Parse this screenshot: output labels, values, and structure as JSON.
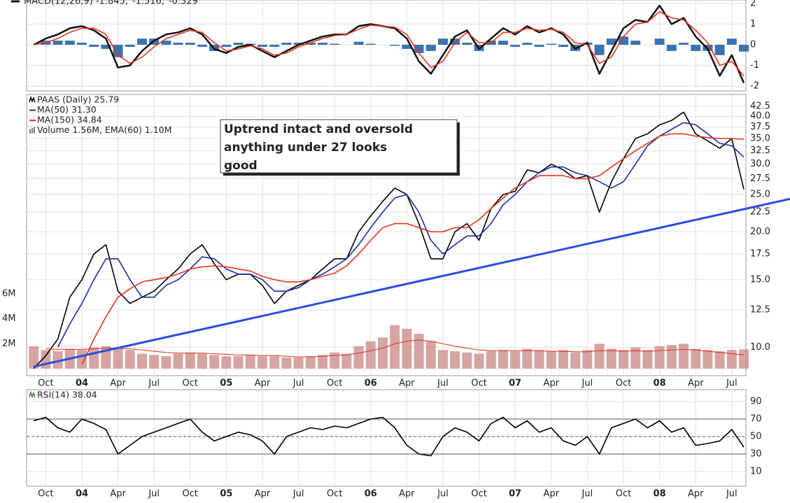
{
  "time_axis": {
    "x": [
      "2003-09",
      "2003-10",
      "2003-11",
      "2003-12",
      "2004-01",
      "2004-02",
      "2004-03",
      "2004-04",
      "2004-05",
      "2004-06",
      "2004-07",
      "2004-08",
      "2004-09",
      "2004-10",
      "2004-11",
      "2004-12",
      "2005-01",
      "2005-02",
      "2005-03",
      "2005-04",
      "2005-05",
      "2005-06",
      "2005-07",
      "2005-08",
      "2005-09",
      "2005-10",
      "2005-11",
      "2005-12",
      "2006-01",
      "2006-02",
      "2006-03",
      "2006-04",
      "2006-05",
      "2006-06",
      "2006-07",
      "2006-08",
      "2006-09",
      "2006-10",
      "2006-11",
      "2006-12",
      "2007-01",
      "2007-02",
      "2007-03",
      "2007-04",
      "2007-05",
      "2007-06",
      "2007-07",
      "2007-08",
      "2007-09",
      "2007-10",
      "2007-11",
      "2007-12",
      "2008-01",
      "2008-02",
      "2008-03",
      "2008-04",
      "2008-05",
      "2008-06",
      "2008-07",
      "2008-08"
    ],
    "xlim": [
      "2003-08",
      "2008-08"
    ],
    "xticks": [
      {
        "value": "2003-10",
        "label": "Oct"
      },
      {
        "value": "2004-01",
        "label": "04"
      },
      {
        "value": "2004-04",
        "label": "Apr"
      },
      {
        "value": "2004-07",
        "label": "Jul"
      },
      {
        "value": "2004-10",
        "label": "Oct"
      },
      {
        "value": "2005-01",
        "label": "05"
      },
      {
        "value": "2005-04",
        "label": "Apr"
      },
      {
        "value": "2005-07",
        "label": "Jul"
      },
      {
        "value": "2005-10",
        "label": "Oct"
      },
      {
        "value": "2006-01",
        "label": "06"
      },
      {
        "value": "2006-04",
        "label": "Apr"
      },
      {
        "value": "2006-07",
        "label": "Jul"
      },
      {
        "value": "2006-10",
        "label": "Oct"
      },
      {
        "value": "2007-01",
        "label": "07"
      },
      {
        "value": "2007-04",
        "label": "Apr"
      },
      {
        "value": "2007-07",
        "label": "Jul"
      },
      {
        "value": "2007-10",
        "label": "Oct"
      },
      {
        "value": "2008-01",
        "label": "08"
      },
      {
        "value": "2008-04",
        "label": "Apr"
      },
      {
        "value": "2008-07",
        "label": "Jul"
      }
    ]
  },
  "chart_data": [
    {
      "type": "line",
      "grid": true,
      "ylim": [
        -2.2,
        2.2
      ],
      "yticks": [
        -2,
        -1,
        0,
        1,
        2
      ],
      "series": [
        {
          "name": "MACD(12,26,9) -1.845,",
          "color": "#111111",
          "style": "line",
          "values": [
            0,
            0.3,
            0.5,
            0.8,
            0.9,
            0.7,
            0.3,
            -1.1,
            -1,
            -0.3,
            0.2,
            0.5,
            0.6,
            0.8,
            0.5,
            -0.2,
            -0.4,
            -0.1,
            0,
            -0.3,
            -0.6,
            -0.3,
            0,
            0.2,
            0.4,
            0.5,
            0.5,
            0.9,
            1.0,
            0.9,
            0.8,
            0.3,
            -0.8,
            -1.4,
            -0.5,
            0.4,
            0.7,
            -0.2,
            0.3,
            0.8,
            0.5,
            0.9,
            0.6,
            0.8,
            0.5,
            -0.2,
            0.1,
            -1.4,
            -0.3,
            0.8,
            1.2,
            1.1,
            1.9,
            1.0,
            1.3,
            0.4,
            -0.2,
            -1.5,
            -0.5,
            -1.845
          ]
        },
        {
          "name": "-1.516,",
          "color": "#e8341c",
          "style": "line",
          "values": [
            0,
            0.1,
            0.3,
            0.6,
            0.8,
            0.8,
            0.5,
            -0.5,
            -0.9,
            -0.6,
            -0.1,
            0.3,
            0.5,
            0.7,
            0.6,
            0.1,
            -0.3,
            -0.2,
            -0.05,
            -0.2,
            -0.5,
            -0.4,
            -0.1,
            0.1,
            0.3,
            0.45,
            0.5,
            0.75,
            0.95,
            0.9,
            0.85,
            0.5,
            -0.4,
            -1.1,
            -0.8,
            0.1,
            0.6,
            0.1,
            0.1,
            0.6,
            0.6,
            0.8,
            0.7,
            0.75,
            0.6,
            0.1,
            0,
            -0.9,
            -0.6,
            0.4,
            1.0,
            1.1,
            1.6,
            1.3,
            1.2,
            0.7,
            0.1,
            -1.0,
            -0.8,
            -1.516
          ]
        },
        {
          "name": "-0.329",
          "color": "#3b73b0",
          "style": "bar",
          "values": [
            0,
            0.2,
            0.2,
            0.2,
            0.1,
            -0.1,
            -0.2,
            -0.6,
            -0.1,
            0.3,
            0.3,
            0.2,
            0.1,
            0.1,
            -0.1,
            -0.3,
            -0.1,
            0.1,
            0.05,
            -0.1,
            -0.1,
            0.1,
            0.1,
            0.1,
            0.1,
            0.05,
            0,
            0.15,
            0.05,
            0,
            -0.05,
            -0.2,
            -0.4,
            -0.3,
            0.3,
            0.3,
            0.1,
            -0.3,
            0.2,
            0.2,
            -0.1,
            0.1,
            -0.1,
            0.05,
            -0.1,
            -0.3,
            0.1,
            -0.5,
            0.3,
            0.4,
            0.2,
            0,
            0.3,
            -0.3,
            0.1,
            -0.3,
            -0.3,
            -0.5,
            0.3,
            -0.329
          ]
        }
      ]
    },
    {
      "type": "line",
      "grid": true,
      "log_scale": true,
      "ylim": [
        8.5,
        45.6
      ],
      "yticks": [
        {
          "value": 10,
          "label": "10.0"
        },
        12.5,
        {
          "value": 15,
          "label": "15.0"
        },
        17.5,
        {
          "value": 20,
          "label": "20.0"
        },
        22.5,
        {
          "value": 25,
          "label": "25.0"
        },
        27.5,
        {
          "value": 30,
          "label": "30.0"
        },
        32.5,
        {
          "value": 35,
          "label": "35.0"
        },
        37.5,
        {
          "value": 40,
          "label": "40.0"
        },
        42.5
      ],
      "y2lim": [
        0,
        22000000
      ],
      "y2ticks": [
        {
          "value": 2000000,
          "label": "2M"
        },
        {
          "value": 4000000,
          "label": "4M"
        },
        {
          "value": 6000000,
          "label": "6M"
        }
      ],
      "series": [
        {
          "name": "PAAS (Daily) 25.79",
          "color": "#000000",
          "style": "line",
          "values": [
            8.8,
            9.5,
            10.5,
            13.5,
            15,
            17.5,
            18.5,
            14,
            13,
            13.5,
            14,
            15,
            16,
            17.5,
            18.5,
            16.5,
            15,
            15.5,
            15.5,
            14.5,
            13,
            14,
            14.5,
            15,
            16,
            17,
            17,
            20,
            22,
            24,
            26,
            25,
            21,
            17,
            17,
            20,
            21,
            19,
            23,
            25,
            25.5,
            29,
            28.5,
            30,
            29,
            27.5,
            28,
            22.5,
            27,
            31,
            35,
            36,
            38,
            39,
            41,
            36,
            34.5,
            33,
            35,
            25.79
          ]
        },
        {
          "name": "MA(50) 31.30",
          "color": "#1a2ea8",
          "style": "line",
          "values": [
            null,
            null,
            10,
            11.5,
            13,
            15,
            17,
            17,
            15,
            13.5,
            13.5,
            14.5,
            15,
            16,
            17.2,
            17,
            16,
            15.5,
            15.5,
            15,
            14,
            14,
            14.3,
            15,
            15.5,
            16.2,
            17,
            18.5,
            20.5,
            22.5,
            24.5,
            25,
            22.5,
            19,
            17.5,
            18.5,
            19.5,
            19.5,
            21,
            23.5,
            25,
            27,
            28.5,
            29.5,
            29.5,
            28.5,
            28,
            27,
            26,
            27,
            30,
            33.5,
            35.5,
            37,
            38.5,
            38,
            36,
            34,
            33.5,
            31.3
          ]
        },
        {
          "name": "MA(150) 34.84",
          "color": "#e8341c",
          "style": "line",
          "values": [
            null,
            null,
            null,
            null,
            9,
            10.5,
            12,
            13.5,
            14.2,
            14.8,
            15,
            15.2,
            15.5,
            16,
            16.2,
            16.3,
            16.2,
            16,
            15.8,
            15.3,
            15,
            14.8,
            14.8,
            15,
            15.3,
            15.6,
            16.3,
            17.5,
            19,
            20.5,
            21,
            21,
            20.5,
            20,
            20,
            20.5,
            20.5,
            21.5,
            23,
            24.5,
            26,
            27,
            28,
            28,
            28,
            27.5,
            27.5,
            28,
            29.5,
            31,
            32.5,
            34,
            35.5,
            36,
            36,
            35.5,
            35.2,
            35,
            35,
            34.84
          ]
        },
        {
          "name": "Volume 1.56M, EMA(60) 1.10M",
          "color": "#c98585",
          "style": "bar",
          "axis": "y2",
          "values": [
            1800000,
            1500000,
            1400000,
            1600000,
            1500000,
            1700000,
            1800000,
            1600000,
            1500000,
            1200000,
            1100000,
            1000000,
            1200000,
            1300000,
            1200000,
            1100000,
            1000000,
            1000000,
            1100000,
            1000000,
            1000000,
            900000,
            900000,
            1000000,
            1100000,
            1300000,
            1200000,
            1800000,
            2200000,
            2500000,
            3500000,
            3200000,
            2800000,
            2200000,
            1500000,
            1400000,
            1300000,
            1200000,
            1400000,
            1500000,
            1400000,
            1600000,
            1500000,
            1400000,
            1500000,
            1300000,
            1500000,
            2000000,
            1600000,
            1500000,
            1700000,
            1500000,
            1800000,
            1900000,
            2000000,
            1600000,
            1500000,
            1400000,
            1500000,
            1560000
          ]
        },
        {
          "color": "#e03020",
          "style": "line",
          "axis": "y2",
          "values": [
            null,
            1600000,
            1550000,
            1550000,
            1550000,
            1600000,
            1650000,
            1650000,
            1600000,
            1500000,
            1400000,
            1300000,
            1250000,
            1250000,
            1250000,
            1200000,
            1150000,
            1100000,
            1100000,
            1050000,
            1050000,
            1000000,
            950000,
            950000,
            1000000,
            1050000,
            1100000,
            1250000,
            1450000,
            1650000,
            2000000,
            2200000,
            2300000,
            2200000,
            2000000,
            1800000,
            1650000,
            1500000,
            1450000,
            1450000,
            1450000,
            1450000,
            1450000,
            1400000,
            1400000,
            1350000,
            1350000,
            1450000,
            1450000,
            1400000,
            1450000,
            1400000,
            1450000,
            1500000,
            1550000,
            1500000,
            1400000,
            1300000,
            1200000,
            1100000
          ]
        }
      ],
      "annotation": {
        "lines": [
          "Uptrend intact and oversold",
          "anything under 27 looks",
          "good"
        ],
        "color": "#1e2bd8"
      },
      "trendline": {
        "x": [
          "2003-09",
          "2008-08"
        ],
        "values": [
          8.9,
          22.9
        ],
        "color": "#2a4ee0"
      }
    },
    {
      "type": "line",
      "grid": true,
      "ylim": [
        0,
        100
      ],
      "yticks": [
        10,
        30,
        50,
        70,
        90
      ],
      "reference_lines": [
        30,
        70
      ],
      "midline": 50,
      "series": [
        {
          "name": "RSI(14) 38.04",
          "color": "#000000",
          "style": "line",
          "values": [
            68,
            72,
            60,
            55,
            70,
            65,
            58,
            30,
            40,
            50,
            55,
            60,
            65,
            70,
            55,
            45,
            50,
            55,
            52,
            45,
            30,
            50,
            55,
            60,
            58,
            62,
            60,
            65,
            70,
            72,
            60,
            40,
            30,
            28,
            50,
            60,
            55,
            45,
            65,
            72,
            60,
            68,
            55,
            60,
            45,
            40,
            50,
            30,
            60,
            65,
            70,
            60,
            68,
            55,
            60,
            40,
            42,
            45,
            58,
            38.04
          ]
        }
      ]
    }
  ]
}
